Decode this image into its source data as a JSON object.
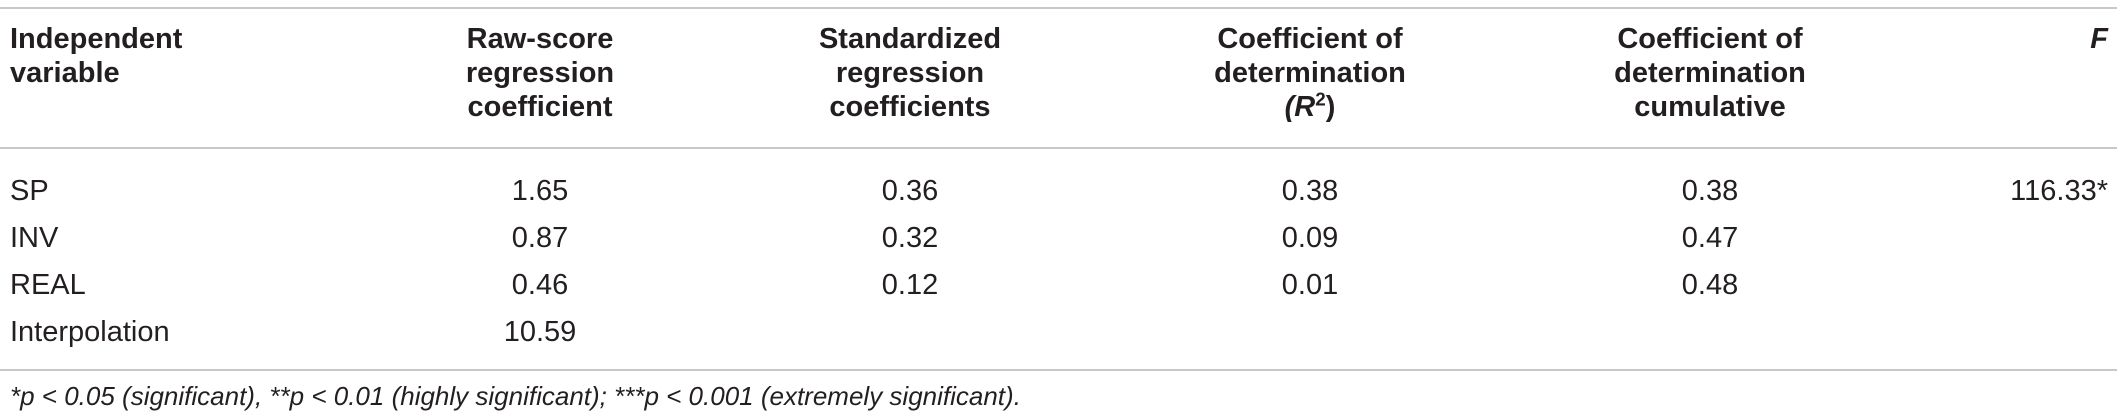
{
  "table": {
    "headers": {
      "independent_variable": [
        "Independent",
        "variable"
      ],
      "raw_score": [
        "Raw-score",
        "regression",
        "coefficient"
      ],
      "standardized": [
        "Standardized",
        "regression",
        "coefficients"
      ],
      "cod": [
        "Coefficient of",
        "determination"
      ],
      "cod_r2_prefix": "(R",
      "cod_r2_sup": "2",
      "cod_r2_suffix": ")",
      "cod_cumulative": [
        "Coefficient of",
        "determination",
        "cumulative"
      ],
      "f": "F"
    },
    "rows": [
      {
        "variable": "SP",
        "raw_score": "1.65",
        "standardized": "0.36",
        "cod": "0.38",
        "cumulative": "0.38",
        "f": "116.33*"
      },
      {
        "variable": "INV",
        "raw_score": "0.87",
        "standardized": "0.32",
        "cod": "0.09",
        "cumulative": "0.47",
        "f": ""
      },
      {
        "variable": "REAL",
        "raw_score": "0.46",
        "standardized": "0.12",
        "cod": "0.01",
        "cumulative": "0.48",
        "f": ""
      },
      {
        "variable": "Interpolation",
        "raw_score": "10.59",
        "standardized": "",
        "cod": "",
        "cumulative": "",
        "f": ""
      }
    ],
    "footnote": "*p < 0.05 (significant), **p < 0.01 (highly significant); ***p < 0.001 (extremely significant)."
  }
}
